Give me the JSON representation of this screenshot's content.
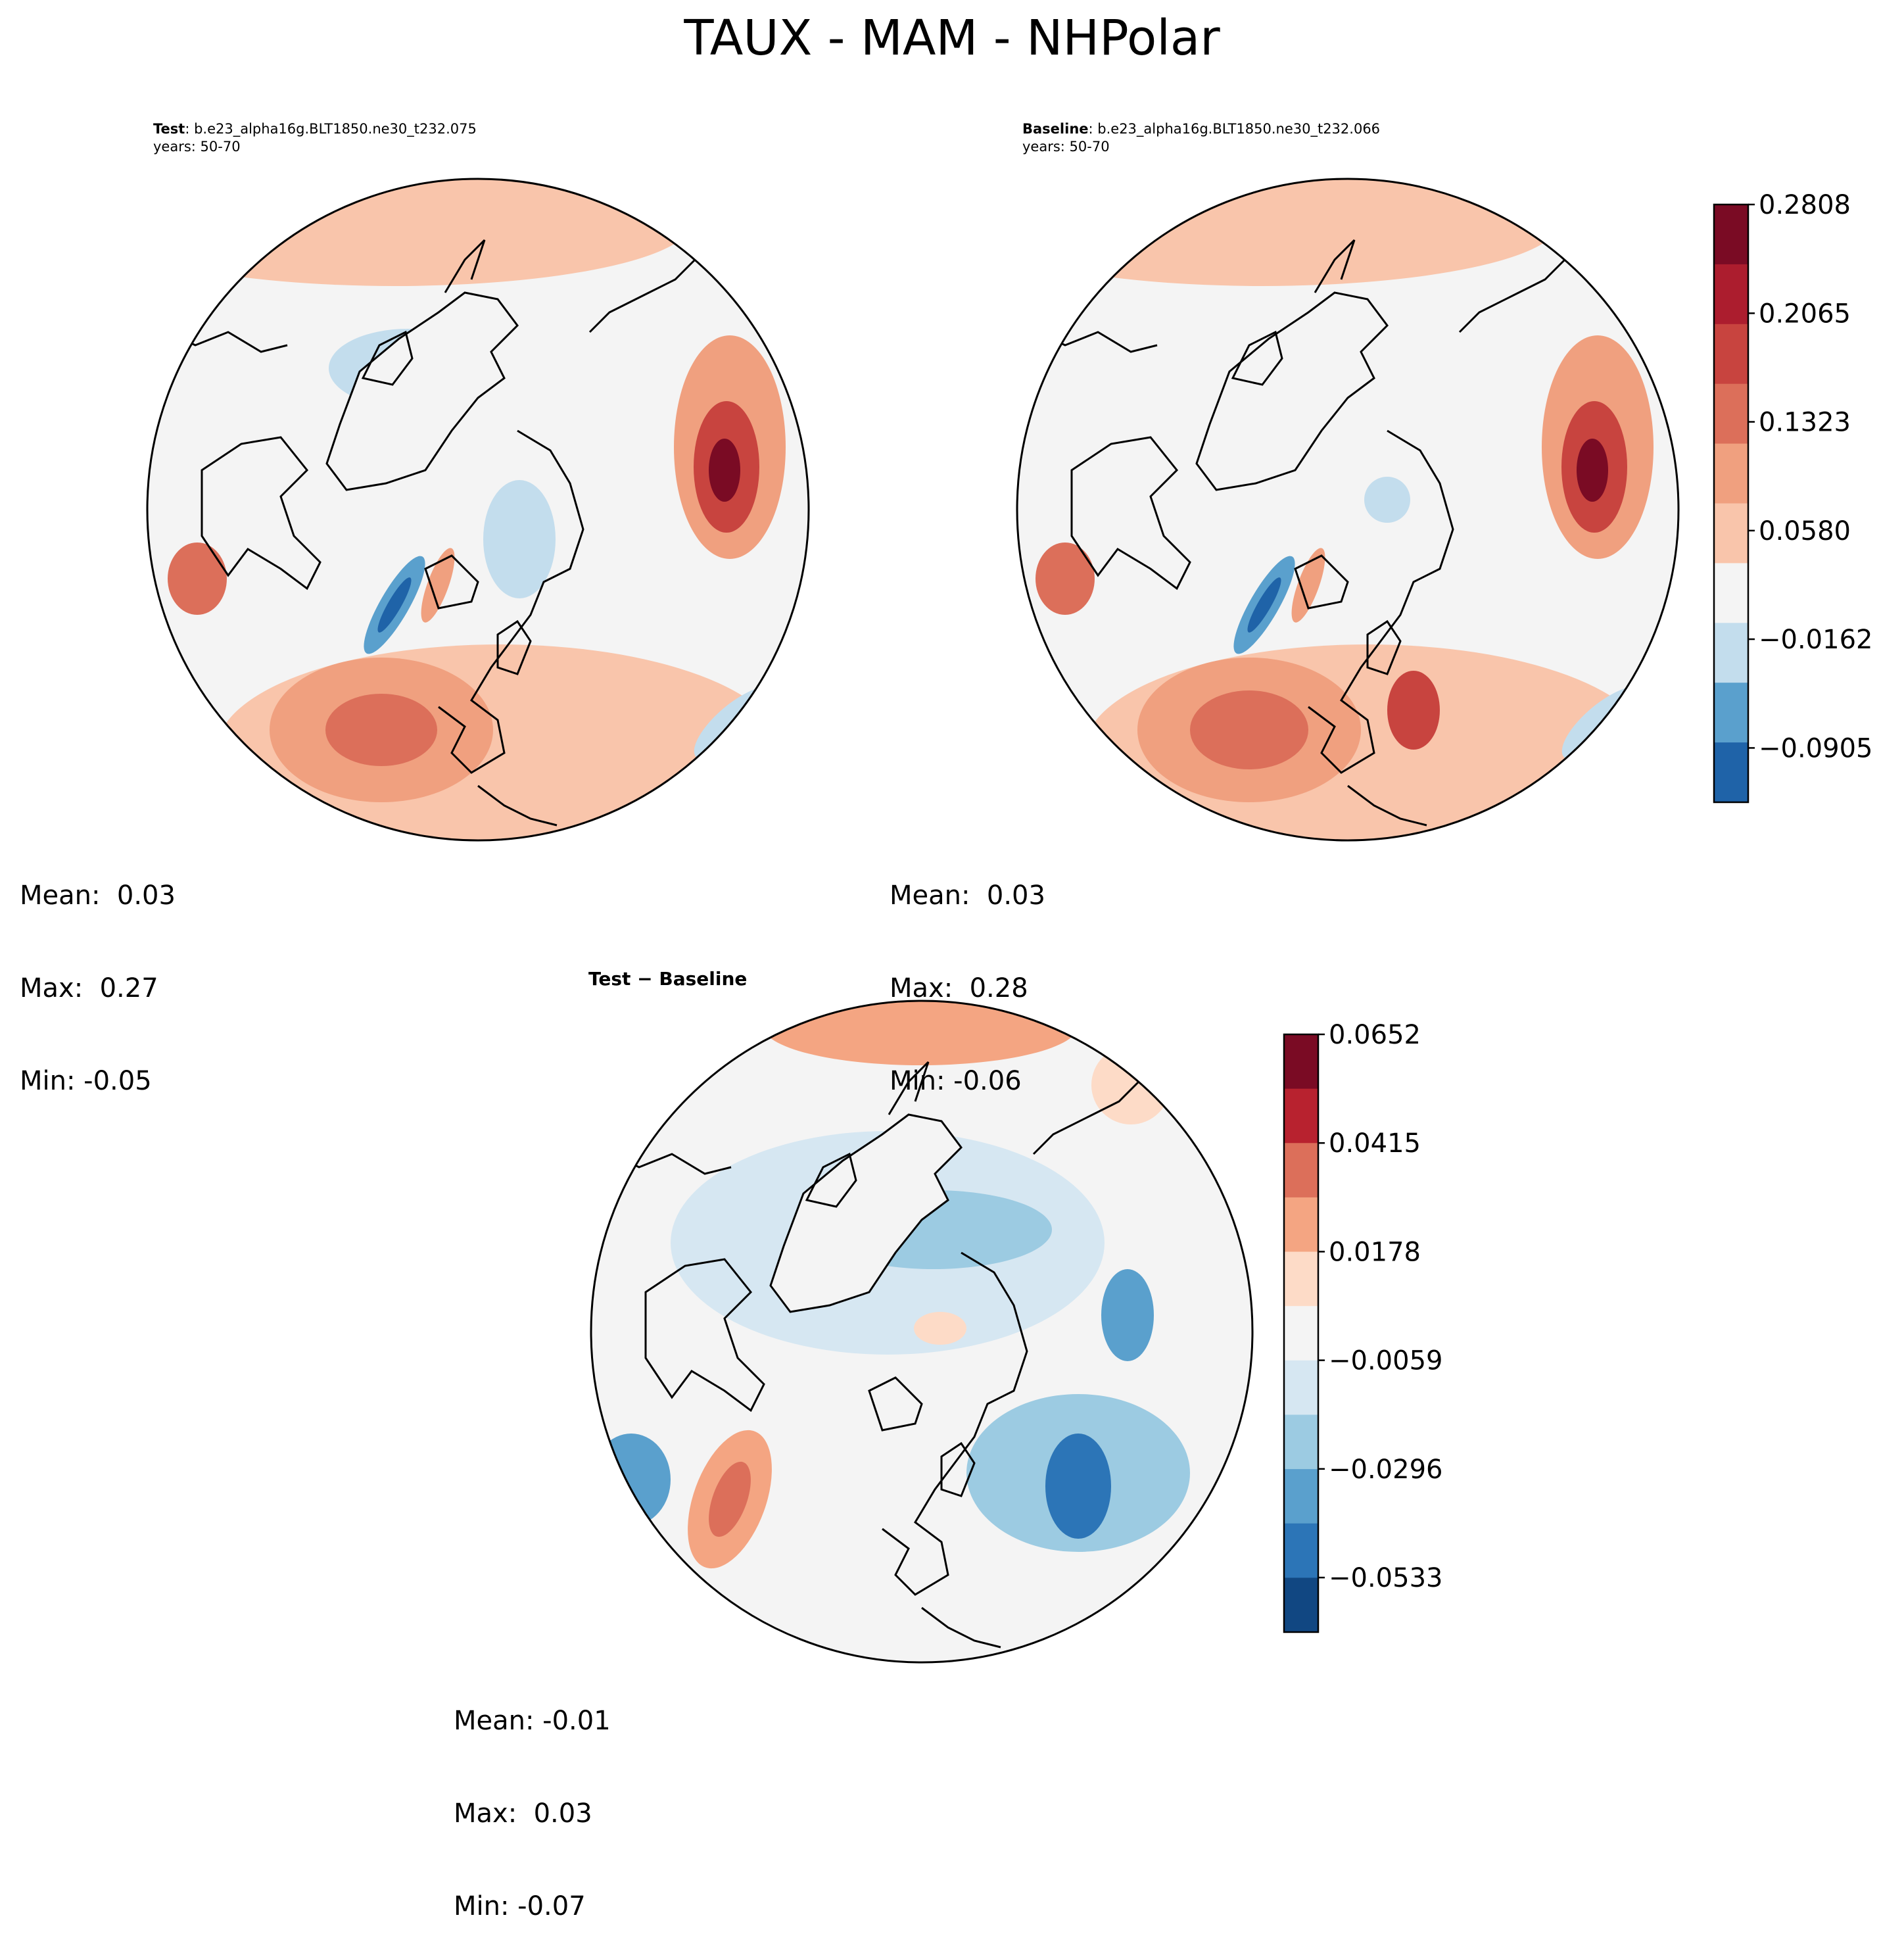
{
  "figure": {
    "title": "TAUX - MAM - NHPolar"
  },
  "chart_data": [
    {
      "type": "contour-map",
      "projection": "north-polar-stereographic",
      "panel": "test",
      "title_bold": "Test",
      "title_case": ": b.e23_alpha16g.BLT1850.ne30_t232.075",
      "years": "years: 50-70",
      "stats": {
        "mean": "Mean:  0.03",
        "max": "Max:  0.27",
        "min": "Min: -0.05"
      },
      "colormap": "RdBu_r",
      "levels": [
        -0.1276,
        -0.0905,
        -0.0534,
        -0.0162,
        0.0209,
        0.058,
        0.0951,
        0.1323,
        0.1694,
        0.2065,
        0.2436,
        0.2808
      ]
    },
    {
      "type": "contour-map",
      "projection": "north-polar-stereographic",
      "panel": "baseline",
      "title_bold": "Baseline",
      "title_case": ": b.e23_alpha16g.BLT1850.ne30_t232.066",
      "years": "years: 50-70",
      "stats": {
        "mean": "Mean:  0.03",
        "max": "Max:  0.28",
        "min": "Min: -0.06"
      },
      "colormap": "RdBu_r",
      "levels": [
        -0.1276,
        -0.0905,
        -0.0534,
        -0.0162,
        0.0209,
        0.058,
        0.0951,
        0.1323,
        0.1694,
        0.2065,
        0.2436,
        0.2808
      ],
      "colorbar_ticks": [
        "0.2808",
        "0.2065",
        "0.1323",
        "0.0580",
        "−0.0162",
        "−0.0905"
      ]
    },
    {
      "type": "contour-map",
      "projection": "north-polar-stereographic",
      "panel": "difference",
      "title": "Test − Baseline",
      "stats": {
        "mean": "Mean: -0.01",
        "max": "Max:  0.03",
        "min": "Min: -0.07"
      },
      "colormap": "RdBu_r",
      "levels": [
        -0.0652,
        -0.0533,
        -0.0415,
        -0.0296,
        -0.0178,
        -0.0059,
        0.0059,
        0.0178,
        0.0296,
        0.0415,
        0.0533,
        0.0652
      ],
      "colorbar_ticks": [
        "0.0652",
        "0.0415",
        "0.0178",
        "−0.0059",
        "−0.0296",
        "−0.0533"
      ]
    }
  ],
  "colors": {
    "bar1": [
      "#7a0b24",
      "#ac1d2e",
      "#c8443f",
      "#dc6f5a",
      "#f0a07f",
      "#f9c5ab",
      "#f4f4f4",
      "#c3dded",
      "#5aa0cd",
      "#1f63a8"
    ],
    "bar2": [
      "#7a0b24",
      "#b8222f",
      "#dc6f5a",
      "#f4a582",
      "#fddbc7",
      "#f4f4f4",
      "#d6e7f2",
      "#9ccbe2",
      "#5aa0cd",
      "#2c75b7",
      "#114782"
    ],
    "outline": "#000000"
  }
}
